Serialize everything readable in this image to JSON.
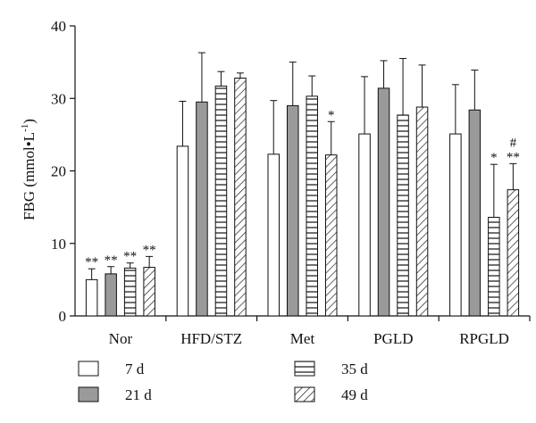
{
  "chart_data": {
    "type": "bar",
    "ylabel": "FBG (mmol•L",
    "ylabel_superscript": "-1",
    "ylabel_close": ")",
    "ylim": [
      0,
      40
    ],
    "yticks": [
      0,
      10,
      20,
      30,
      40
    ],
    "grid": false,
    "legend_position": "bottom",
    "categories": [
      "Nor",
      "HFD/STZ",
      "Met",
      "PGLD",
      "RPGLD"
    ],
    "series": [
      {
        "name": "7 d",
        "fill": "white",
        "color": "#ffffff",
        "values": [
          5.0,
          23.4,
          22.3,
          25.1,
          25.1
        ],
        "errors": [
          1.5,
          6.2,
          7.4,
          7.9,
          6.8
        ]
      },
      {
        "name": "21 d",
        "fill": "gray",
        "color": "#9a9a9a",
        "values": [
          5.8,
          29.5,
          29.0,
          31.4,
          28.4
        ],
        "errors": [
          1.0,
          6.8,
          6.0,
          3.8,
          5.5
        ]
      },
      {
        "name": "35 d",
        "fill": "horizontal-lines",
        "color": "#ffffff",
        "values": [
          6.6,
          31.7,
          30.3,
          27.7,
          13.6
        ],
        "errors": [
          0.7,
          2.0,
          2.8,
          7.8,
          7.3
        ]
      },
      {
        "name": "49 d",
        "fill": "diagonal-lines",
        "color": "#ffffff",
        "values": [
          6.7,
          32.8,
          22.2,
          28.8,
          17.4
        ],
        "errors": [
          1.5,
          0.7,
          4.6,
          5.8,
          3.6
        ]
      }
    ],
    "annotations": [
      {
        "category": "Nor",
        "series": "7 d",
        "text": "**"
      },
      {
        "category": "Nor",
        "series": "21 d",
        "text": "**"
      },
      {
        "category": "Nor",
        "series": "35 d",
        "text": "**"
      },
      {
        "category": "Nor",
        "series": "49 d",
        "text": "**"
      },
      {
        "category": "Met",
        "series": "49 d",
        "text": "*"
      },
      {
        "category": "RPGLD",
        "series": "35 d",
        "text": "*"
      },
      {
        "category": "RPGLD",
        "series": "49 d",
        "text": "**"
      },
      {
        "category": "RPGLD",
        "series": "49 d",
        "text": "#"
      }
    ]
  }
}
